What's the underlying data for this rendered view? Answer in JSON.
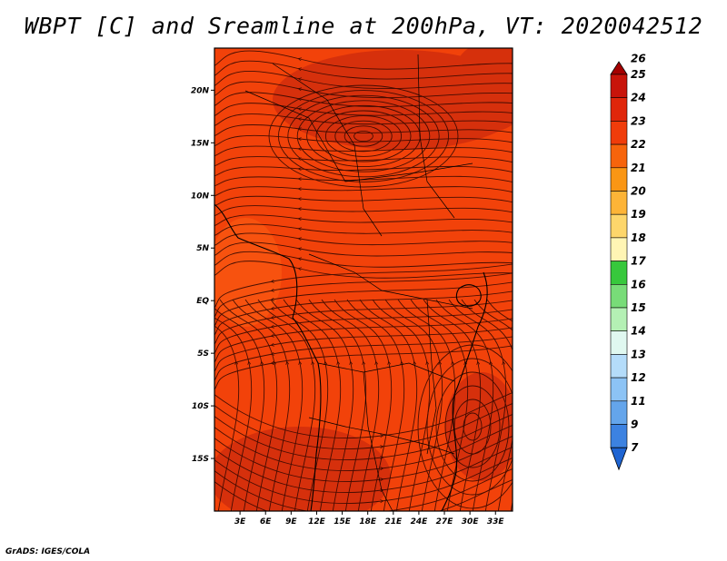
{
  "title": "WBPT [C] and Sreamline at 200hPa, VT: 2020042512",
  "credit": "GrADS: IGES/COLA",
  "map": {
    "lon_range": [
      0,
      35
    ],
    "lat_range": [
      -20,
      24
    ],
    "lat_ticks": [
      {
        "value": 20,
        "label": "20N"
      },
      {
        "value": 15,
        "label": "15N"
      },
      {
        "value": 10,
        "label": "10N"
      },
      {
        "value": 5,
        "label": "5N"
      },
      {
        "value": 0,
        "label": "EQ"
      },
      {
        "value": -5,
        "label": "5S"
      },
      {
        "value": -10,
        "label": "10S"
      },
      {
        "value": -15,
        "label": "15S"
      }
    ],
    "lon_ticks": [
      {
        "value": 3,
        "label": "3E"
      },
      {
        "value": 6,
        "label": "6E"
      },
      {
        "value": 9,
        "label": "9E"
      },
      {
        "value": 12,
        "label": "12E"
      },
      {
        "value": 15,
        "label": "15E"
      },
      {
        "value": 18,
        "label": "18E"
      },
      {
        "value": 21,
        "label": "21E"
      },
      {
        "value": 24,
        "label": "24E"
      },
      {
        "value": 27,
        "label": "27E"
      },
      {
        "value": 30,
        "label": "30E"
      },
      {
        "value": 33,
        "label": "33E"
      }
    ],
    "field_colors": {
      "base": "#f2420a",
      "dark": "#d6300c",
      "light": "#f7520f"
    }
  },
  "colorbar": {
    "levels": [
      {
        "label": "26",
        "color": "#a50000"
      },
      {
        "label": "25",
        "color": "#c8140a"
      },
      {
        "label": "24",
        "color": "#e0260a"
      },
      {
        "label": "23",
        "color": "#f03c0a"
      },
      {
        "label": "22",
        "color": "#f7640c"
      },
      {
        "label": "21",
        "color": "#fa9614"
      },
      {
        "label": "20",
        "color": "#fdb437"
      },
      {
        "label": "19",
        "color": "#fdd66b"
      },
      {
        "label": "18",
        "color": "#fff5b4"
      },
      {
        "label": "17",
        "color": "#37c83c"
      },
      {
        "label": "16",
        "color": "#78dc78"
      },
      {
        "label": "15",
        "color": "#b4f0b4"
      },
      {
        "label": "14",
        "color": "#e0f8f0"
      },
      {
        "label": "13",
        "color": "#b4dcfa"
      },
      {
        "label": "12",
        "color": "#8cc3f5"
      },
      {
        "label": "11",
        "color": "#64a5eb"
      },
      {
        "label": "9",
        "color": "#3c82e1"
      },
      {
        "label": "7",
        "color": "#1e64d2"
      }
    ]
  }
}
